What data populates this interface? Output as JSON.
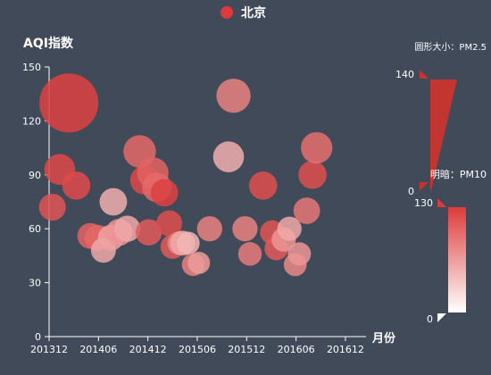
{
  "chart_data": {
    "type": "scatter",
    "legend": {
      "label": "北京",
      "color": "#dd3b3b",
      "position": "top-center"
    },
    "yaxis": {
      "label": "AQI指数",
      "ylim": [
        0,
        150
      ],
      "ticks": [
        "0",
        "30",
        "60",
        "90",
        "120",
        "150"
      ]
    },
    "xaxis": {
      "label": "月份",
      "ticks": [
        "201312",
        "201406",
        "201412",
        "201506",
        "201512",
        "201606",
        "201612"
      ],
      "tick_values": [
        0,
        6,
        12,
        18,
        24,
        30,
        36
      ],
      "xlim": [
        0,
        38.5
      ]
    },
    "grid": false,
    "series": [
      {
        "name": "北京",
        "color": "#c23531",
        "points": [
          {
            "x": 0.4,
            "y": 72,
            "pm25": 38,
            "pm10": 110
          },
          {
            "x": 1.3,
            "y": 93,
            "pm25": 50,
            "pm10": 120
          },
          {
            "x": 2.4,
            "y": 130,
            "pm25": 135,
            "pm10": 125
          },
          {
            "x": 3.3,
            "y": 84,
            "pm25": 42,
            "pm10": 118
          },
          {
            "x": 5.0,
            "y": 56,
            "pm25": 35,
            "pm10": 100
          },
          {
            "x": 5.9,
            "y": 55,
            "pm25": 35,
            "pm10": 95
          },
          {
            "x": 6.6,
            "y": 48,
            "pm25": 32,
            "pm10": 45
          },
          {
            "x": 7.5,
            "y": 55,
            "pm25": 35,
            "pm10": 50
          },
          {
            "x": 7.8,
            "y": 75,
            "pm25": 40,
            "pm10": 40
          },
          {
            "x": 8.5,
            "y": 58,
            "pm25": 38,
            "pm10": 60
          },
          {
            "x": 9.5,
            "y": 60,
            "pm25": 36,
            "pm10": 45
          },
          {
            "x": 11.0,
            "y": 103,
            "pm25": 55,
            "pm10": 95
          },
          {
            "x": 11.6,
            "y": 87,
            "pm25": 44,
            "pm10": 120
          },
          {
            "x": 12.1,
            "y": 58,
            "pm25": 36,
            "pm10": 105
          },
          {
            "x": 12.6,
            "y": 91,
            "pm25": 52,
            "pm10": 100
          },
          {
            "x": 13.1,
            "y": 83,
            "pm25": 46,
            "pm10": 95
          },
          {
            "x": 14.0,
            "y": 80,
            "pm25": 40,
            "pm10": 125
          },
          {
            "x": 14.6,
            "y": 63,
            "pm25": 35,
            "pm10": 115
          },
          {
            "x": 15.0,
            "y": 50,
            "pm25": 30,
            "pm10": 105
          },
          {
            "x": 15.8,
            "y": 52,
            "pm25": 28,
            "pm10": 70
          },
          {
            "x": 16.2,
            "y": 52,
            "pm25": 32,
            "pm10": 45
          },
          {
            "x": 16.9,
            "y": 52,
            "pm25": 26,
            "pm10": 35
          },
          {
            "x": 17.5,
            "y": 40,
            "pm25": 25,
            "pm10": 75
          },
          {
            "x": 18.2,
            "y": 41,
            "pm25": 24,
            "pm10": 55
          },
          {
            "x": 19.5,
            "y": 60,
            "pm25": 33,
            "pm10": 75
          },
          {
            "x": 21.8,
            "y": 100,
            "pm25": 50,
            "pm10": 40
          },
          {
            "x": 22.4,
            "y": 134,
            "pm25": 60,
            "pm10": 75
          },
          {
            "x": 23.8,
            "y": 60,
            "pm25": 33,
            "pm10": 75
          },
          {
            "x": 24.4,
            "y": 46,
            "pm25": 28,
            "pm10": 80
          },
          {
            "x": 26.0,
            "y": 84,
            "pm25": 42,
            "pm10": 115
          },
          {
            "x": 27.1,
            "y": 58,
            "pm25": 30,
            "pm10": 110
          },
          {
            "x": 27.6,
            "y": 49,
            "pm25": 28,
            "pm10": 105
          },
          {
            "x": 28.5,
            "y": 54,
            "pm25": 30,
            "pm10": 60
          },
          {
            "x": 29.2,
            "y": 60,
            "pm25": 30,
            "pm10": 45
          },
          {
            "x": 29.9,
            "y": 40,
            "pm25": 26,
            "pm10": 70
          },
          {
            "x": 30.4,
            "y": 46,
            "pm25": 27,
            "pm10": 60
          },
          {
            "x": 31.3,
            "y": 70,
            "pm25": 37,
            "pm10": 85
          },
          {
            "x": 32.0,
            "y": 90,
            "pm25": 42,
            "pm10": 115
          },
          {
            "x": 32.5,
            "y": 105,
            "pm25": 52,
            "pm10": 90
          }
        ]
      }
    ],
    "visual_map_size": {
      "label": "圆形大小：PM2.5",
      "min": "0",
      "max": "140",
      "color": "#c23531"
    },
    "visual_map_color": {
      "label": "明暗：PM10",
      "min": "0",
      "max": "130",
      "color_high": "#dd3b3b",
      "color_low": "#ffffff"
    }
  }
}
